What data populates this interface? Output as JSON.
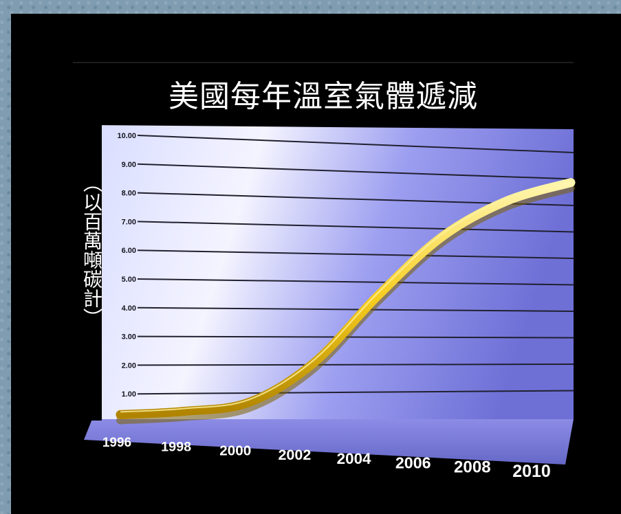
{
  "chart_data": {
    "type": "line",
    "title": "美國每年溫室氣體遞減",
    "ylabel": "（以百萬噸碳計）",
    "xlabel": "",
    "x": [
      1996,
      1998,
      2000,
      2002,
      2004,
      2006,
      2008,
      2010
    ],
    "x_tick_labels": [
      "1996",
      "1998",
      "2000",
      "2002",
      "2004",
      "2006",
      "2008",
      "2010"
    ],
    "y_tick_labels": [
      "1.00",
      "2.00",
      "3.00",
      "4.00",
      "5.00",
      "6.00",
      "7.00",
      "8.00",
      "9.00",
      "10.00"
    ],
    "ylim": [
      0,
      10
    ],
    "grid": true,
    "series": [
      {
        "values": [
          0.2,
          0.3,
          0.6,
          2.0,
          4.5,
          6.8,
          8.3,
          9.2
        ],
        "color": "#f5c400"
      }
    ]
  }
}
